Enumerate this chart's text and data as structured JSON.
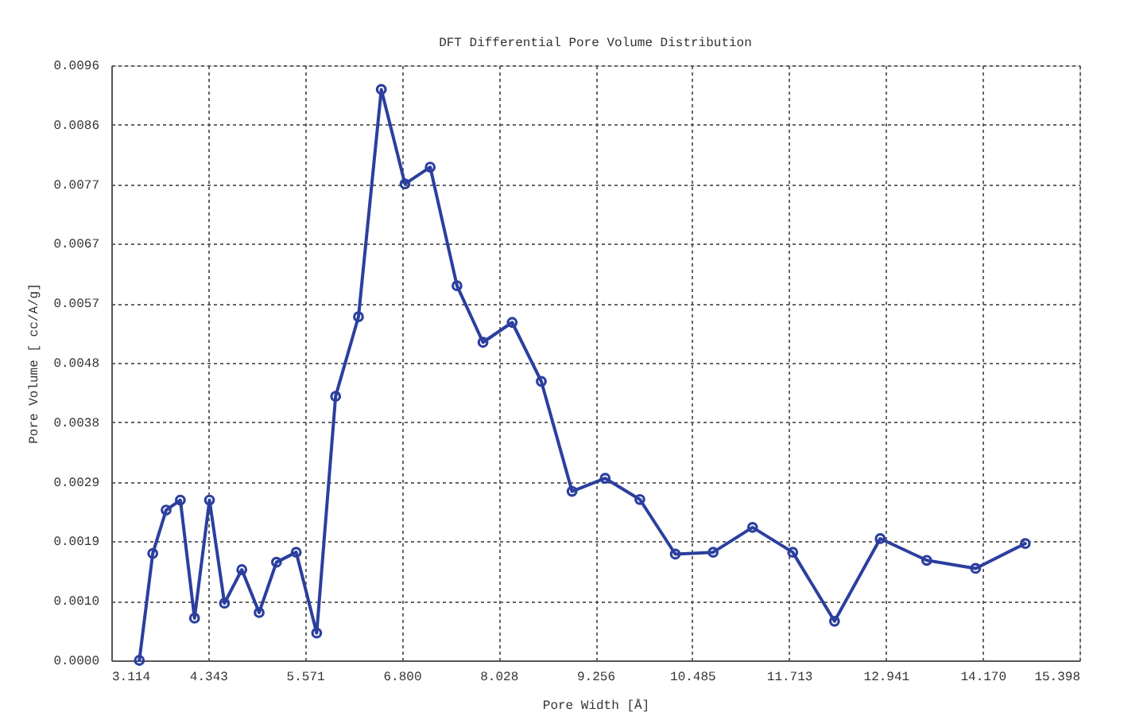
{
  "chart_data": {
    "type": "line",
    "title": "DFT Differential Pore Volume Distribution",
    "xlabel": "Pore Width [Å]",
    "ylabel": "Pore Volume [ cc/A/g]",
    "x": [
      3.47,
      3.64,
      3.81,
      3.99,
      4.17,
      4.36,
      4.55,
      4.77,
      4.99,
      5.21,
      5.46,
      5.72,
      5.96,
      6.25,
      6.54,
      6.84,
      7.16,
      7.5,
      7.83,
      8.2,
      8.57,
      8.96,
      9.38,
      9.82,
      10.27,
      10.75,
      11.25,
      11.76,
      12.29,
      12.87,
      13.46,
      14.08,
      14.71
    ],
    "series": [
      {
        "color": "#2b3f9e",
        "values": [
          0,
          0.00172,
          0.00242,
          0.00258,
          0.00068,
          0.00258,
          0.00092,
          0.00146,
          0.00077,
          0.00158,
          0.00174,
          0.00044,
          0.00425,
          0.00553,
          0.00919,
          0.00767,
          0.00794,
          0.00603,
          0.00512,
          0.00544,
          0.00449,
          0.00272,
          0.00293,
          0.00259,
          0.00171,
          0.00174,
          0.00214,
          0.00174,
          0.00063,
          0.00196,
          0.00161,
          0.00148,
          0.00188
        ]
      }
    ],
    "xlim": [
      3.114,
      15.398
    ],
    "xticks": [
      3.114,
      4.343,
      5.571,
      {
        "value": 6.8,
        "label": "6.800"
      },
      8.028,
      9.256,
      10.485,
      11.713,
      12.941,
      {
        "value": 14.17,
        "label": "14.170"
      },
      15.398
    ],
    "ylim": [
      0,
      0.00958
    ],
    "yticks": [
      {
        "value": 0,
        "label": "0.0000"
      },
      {
        "value": 0.000958,
        "label": "0.0010"
      },
      {
        "value": 0.001916,
        "label": "0.0019"
      },
      {
        "value": 0.002874,
        "label": "0.0029"
      },
      {
        "value": 0.003832,
        "label": "0.0038"
      },
      {
        "value": 0.00479,
        "label": "0.0048"
      },
      {
        "value": 0.005748,
        "label": "0.0057"
      },
      {
        "value": 0.006706,
        "label": "0.0067"
      },
      {
        "value": 0.007664,
        "label": "0.0077"
      },
      {
        "value": 0.008622,
        "label": "0.0086"
      },
      {
        "value": 0.00958,
        "label": "0.0096"
      }
    ],
    "grid": true,
    "marker": "circle",
    "line_style": "solid"
  }
}
